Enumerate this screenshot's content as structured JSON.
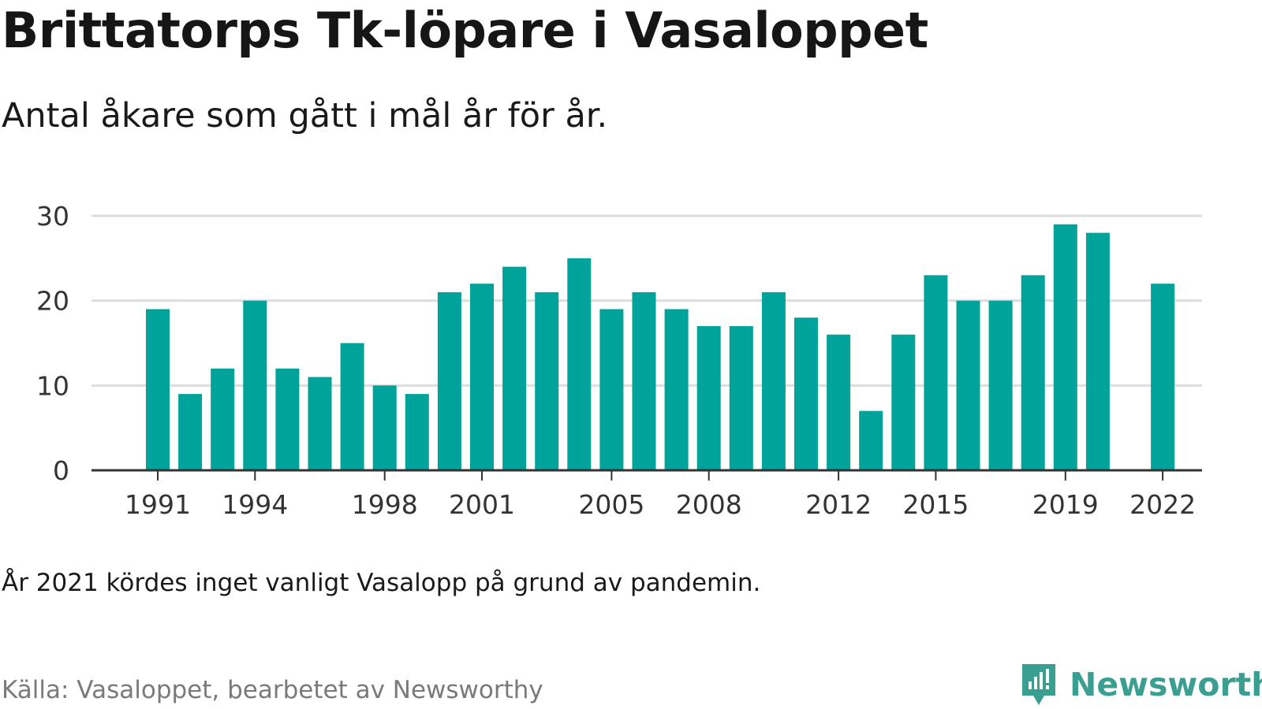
{
  "title": "Brittatorps Tk-löpare i Vasaloppet",
  "subtitle": "Antal åkare som gått i mål år för år.",
  "note": "År 2021 kördes inget vanligt Vasalopp på grund av pandemin.",
  "source": "Källa: Vasaloppet, bearbetet av Newsworthy",
  "brand": {
    "name": "Newsworthy",
    "icon": "newsworthy-logo-icon"
  },
  "colors": {
    "bar": "#00a39a",
    "grid": "#dddddd",
    "axis": "#333333",
    "brand": "#3a9e91"
  },
  "chart_data": {
    "type": "bar",
    "title": "Brittatorps Tk-löpare i Vasaloppet",
    "xlabel": "",
    "ylabel": "",
    "ylim": [
      0,
      30
    ],
    "yticks": [
      0,
      10,
      20,
      30
    ],
    "xticks": [
      1991,
      1994,
      1998,
      2001,
      2005,
      2008,
      2012,
      2015,
      2019,
      2022
    ],
    "categories": [
      1991,
      1992,
      1993,
      1994,
      1995,
      1996,
      1997,
      1998,
      1999,
      2000,
      2001,
      2002,
      2003,
      2004,
      2005,
      2006,
      2007,
      2008,
      2009,
      2010,
      2011,
      2012,
      2013,
      2014,
      2015,
      2016,
      2017,
      2018,
      2019,
      2020,
      2021,
      2022
    ],
    "values": [
      19,
      9,
      12,
      20,
      12,
      11,
      15,
      10,
      9,
      21,
      22,
      24,
      21,
      25,
      19,
      21,
      19,
      17,
      17,
      21,
      18,
      16,
      7,
      16,
      23,
      20,
      20,
      23,
      29,
      28,
      null,
      22
    ],
    "grid": true
  }
}
